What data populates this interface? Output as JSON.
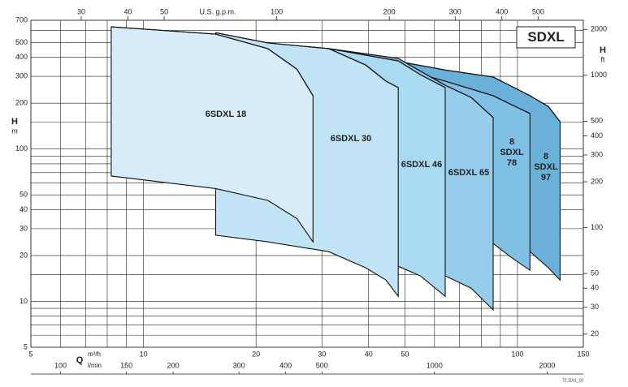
{
  "chart_data": {
    "type": "band",
    "title": "SDXL",
    "xlabel": "Q",
    "xunit": "m³/h",
    "x2label": "U.S. g.p.m.",
    "x3label": "l/min",
    "ylabel": "H",
    "yunit": "m",
    "y2label": "H",
    "y2unit": "ft",
    "footnote": "72.1161_10",
    "scale": "log",
    "grid": true,
    "xlim": [
      5,
      150
    ],
    "xticks": [
      5,
      10,
      20,
      30,
      40,
      50,
      100,
      150
    ],
    "xminor": [
      6,
      7,
      8,
      9,
      60,
      70,
      80,
      90
    ],
    "x2lim": [
      22.0,
      660.5
    ],
    "x2ticks": [
      30,
      40,
      50,
      100,
      200,
      300,
      400,
      500
    ],
    "x3lim": [
      83.3,
      2500
    ],
    "x3ticks": [
      100,
      150,
      200,
      300,
      400,
      500,
      1000,
      2000
    ],
    "ylim": [
      5,
      700
    ],
    "yticks": [
      5,
      10,
      20,
      30,
      40,
      50,
      100,
      200,
      300,
      400,
      500,
      700
    ],
    "yminor": [
      6,
      7,
      8,
      9,
      15,
      60,
      70,
      80,
      90,
      150,
      600
    ],
    "y2lim": [
      16.4,
      2297
    ],
    "y2ticks": [
      20,
      30,
      40,
      50,
      100,
      200,
      300,
      400,
      500,
      1000,
      2000
    ],
    "series": [
      {
        "name": "6SDXL 18",
        "color": "#d7ecf8",
        "x": [
          8.2,
          15.6,
          21.5,
          25.7,
          28.4
        ],
        "upper": [
          634,
          568,
          456,
          335,
          224
        ],
        "lower": [
          66.5,
          55,
          46,
          35,
          24.6
        ]
      },
      {
        "name": "6SDXL 30",
        "color": "#c0e4f6",
        "x": [
          15.6,
          21.5,
          31.3,
          39.3,
          44.5,
          48
        ],
        "upper": [
          580,
          497,
          456,
          356,
          279,
          253
        ],
        "lower": [
          27.2,
          24.6,
          21.2,
          16.6,
          13.8,
          10.8
        ]
      },
      {
        "name": "6SDXL 46",
        "color": "#aadaf2",
        "x": [
          31.3,
          48,
          55,
          64.1
        ],
        "upper": [
          456,
          379,
          308,
          253
        ],
        "lower": [
          22,
          17,
          14.7,
          10.8
        ]
      },
      {
        "name": "6SDXL 65",
        "color": "#95cdeb",
        "x": [
          31.3,
          48,
          64.1,
          75.2,
          86.1
        ],
        "upper": [
          456,
          393,
          262,
          218,
          161
        ],
        "lower": [
          22,
          17,
          14.7,
          12.2,
          8.8
        ]
      },
      {
        "name": "8 SDXL 78",
        "color": "#80c0e4",
        "x": [
          31.3,
          64.1,
          86.1,
          96.6,
          108
        ],
        "upper": [
          456,
          279,
          224,
          195,
          171
        ],
        "lower": [
          22,
          21,
          24,
          19.3,
          16
        ]
      },
      {
        "name": "8 SDXL 97",
        "color": "#6ab1d9",
        "x": [
          31.3,
          64.1,
          86.1,
          108,
          121,
          130
        ],
        "upper": [
          456,
          330,
          297,
          224,
          190,
          151
        ],
        "lower": [
          22,
          21,
          24,
          21.2,
          16.6,
          13.8
        ]
      }
    ]
  }
}
